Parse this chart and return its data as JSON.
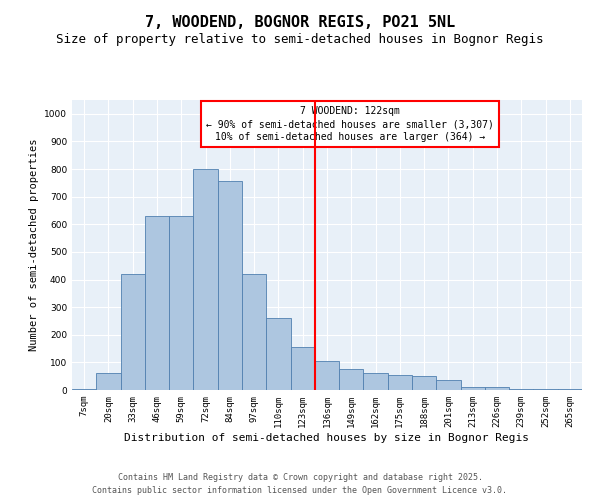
{
  "title": "7, WOODEND, BOGNOR REGIS, PO21 5NL",
  "subtitle": "Size of property relative to semi-detached houses in Bognor Regis",
  "xlabel": "Distribution of semi-detached houses by size in Bognor Regis",
  "ylabel": "Number of semi-detached properties",
  "footer_line1": "Contains HM Land Registry data © Crown copyright and database right 2025.",
  "footer_line2": "Contains public sector information licensed under the Open Government Licence v3.0.",
  "bin_labels": [
    "7sqm",
    "20sqm",
    "33sqm",
    "46sqm",
    "59sqm",
    "72sqm",
    "84sqm",
    "97sqm",
    "110sqm",
    "123sqm",
    "136sqm",
    "149sqm",
    "162sqm",
    "175sqm",
    "188sqm",
    "201sqm",
    "213sqm",
    "226sqm",
    "239sqm",
    "252sqm",
    "265sqm"
  ],
  "bar_heights": [
    5,
    62,
    420,
    630,
    630,
    800,
    755,
    420,
    260,
    155,
    105,
    75,
    60,
    55,
    50,
    35,
    10,
    10,
    5,
    5,
    2
  ],
  "bar_color": "#adc6e0",
  "bar_edge_color": "#5080b0",
  "vline_color": "red",
  "annotation_title": "7 WOODEND: 122sqm",
  "annotation_line1": "← 90% of semi-detached houses are smaller (3,307)",
  "annotation_line2": "10% of semi-detached houses are larger (364) →",
  "ylim": [
    0,
    1050
  ],
  "yticks": [
    0,
    100,
    200,
    300,
    400,
    500,
    600,
    700,
    800,
    900,
    1000
  ],
  "background_color": "#e8f0f8",
  "grid_color": "white",
  "title_fontsize": 11,
  "subtitle_fontsize": 9,
  "xlabel_fontsize": 8,
  "ylabel_fontsize": 7.5,
  "tick_fontsize": 6.5,
  "footer_fontsize": 6,
  "annot_fontsize": 7,
  "vline_x": 9.5
}
